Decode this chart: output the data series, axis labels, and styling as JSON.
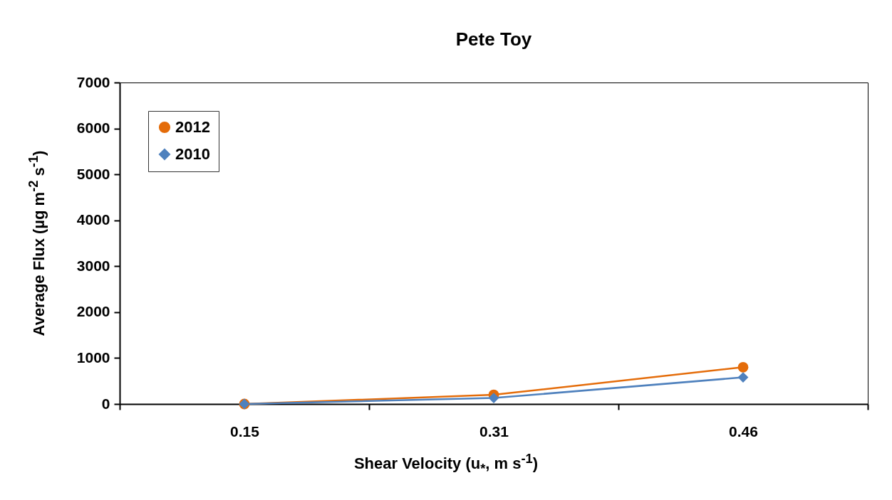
{
  "chart_data": {
    "type": "line",
    "title": "Pete Toy",
    "xlabel": "Shear Velocity (u$_{*}$, m s$^{-1}$)",
    "ylabel": "Average Flux (µg m$^{-2}$ s$^{-1}$)",
    "categories": [
      "0.15",
      "0.31",
      "0.46"
    ],
    "series": [
      {
        "name": "2012",
        "color": "#e46c0a",
        "marker": "circle",
        "values": [
          0,
          200,
          800
        ]
      },
      {
        "name": "2010",
        "color": "#4f81bd",
        "marker": "diamond",
        "values": [
          0,
          130,
          580
        ]
      }
    ],
    "ylim": [
      0,
      7000
    ],
    "yticks": [
      0,
      1000,
      2000,
      3000,
      4000,
      5000,
      6000,
      7000
    ],
    "grid": false,
    "legend": "top left"
  }
}
